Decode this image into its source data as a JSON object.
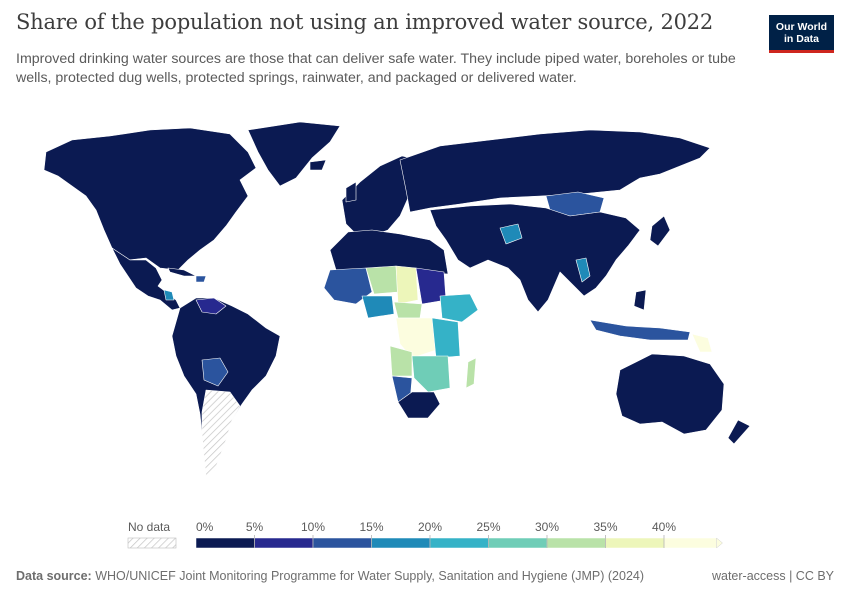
{
  "header": {
    "title": "Share of the population not using an improved water source, 2022",
    "subtitle": "Improved drinking water sources are those that can deliver safe water. They include piped water, boreholes or tube wells, protected dug wells, protected springs, rainwater, and packaged or delivered water.",
    "logo_line1": "Our World",
    "logo_line2": "in Data",
    "logo_colors": {
      "background": "#002147",
      "accent": "#ce261e"
    }
  },
  "legend": {
    "no_data_label": "No data",
    "tick_labels": [
      "0%",
      "5%",
      "10%",
      "15%",
      "20%",
      "25%",
      "30%",
      "35%",
      "40%"
    ],
    "colors": [
      "#0b1a52",
      "#27298f",
      "#2b549e",
      "#1f8ab8",
      "#35b2c7",
      "#6fcdb7",
      "#b9e2a8",
      "#edf6ba",
      "#fcfddf"
    ]
  },
  "map": {
    "shown_regions": [
      {
        "region": "Greenland",
        "color": "#0b1a52"
      },
      {
        "region": "North America",
        "color": "#0b1a52"
      },
      {
        "region": "Cuba",
        "color": "#0b1a52"
      },
      {
        "region": "Haiti",
        "color": "#2b549e"
      },
      {
        "region": "Nicaragua",
        "color": "#1f8ab8"
      },
      {
        "region": "Venezuela",
        "color": "#27298f"
      },
      {
        "region": "Colombia",
        "color": "#0b1a52"
      },
      {
        "region": "Peru",
        "color": "#0b1a52"
      },
      {
        "region": "Brazil",
        "color": "#0b1a52"
      },
      {
        "region": "Bolivia",
        "color": "#2b549e"
      },
      {
        "region": "Chile",
        "color": "#0b1a52"
      },
      {
        "region": "Argentina",
        "color": "no-data"
      },
      {
        "region": "Europe",
        "color": "#0b1a52"
      },
      {
        "region": "Russia",
        "color": "#0b1a52"
      },
      {
        "region": "Mongolia",
        "color": "#2b549e"
      },
      {
        "region": "China",
        "color": "#0b1a52"
      },
      {
        "region": "Afghanistan",
        "color": "#1f8ab8"
      },
      {
        "region": "India",
        "color": "#0b1a52"
      },
      {
        "region": "Myanmar",
        "color": "#1f8ab8"
      },
      {
        "region": "Indonesia",
        "color": "#2b549e"
      },
      {
        "region": "Papua New Guinea",
        "color": "#fcfddf"
      },
      {
        "region": "Australia",
        "color": "#0b1a52"
      },
      {
        "region": "North Africa",
        "color": "#0b1a52"
      },
      {
        "region": "Mali",
        "color": "#2b549e"
      },
      {
        "region": "Niger",
        "color": "#b9e2a8"
      },
      {
        "region": "Chad",
        "color": "#edf6ba"
      },
      {
        "region": "Sudan",
        "color": "#27298f"
      },
      {
        "region": "Ethiopia",
        "color": "#35b2c7"
      },
      {
        "region": "Nigeria",
        "color": "#1f8ab8"
      },
      {
        "region": "Central African Republic",
        "color": "#b9e2a8"
      },
      {
        "region": "DR Congo",
        "color": "#fcfddf"
      },
      {
        "region": "Kenya",
        "color": "#35b2c7"
      },
      {
        "region": "Tanzania",
        "color": "#35b2c7"
      },
      {
        "region": "Angola",
        "color": "#b9e2a8"
      },
      {
        "region": "Zambia",
        "color": "#6fcdb7"
      },
      {
        "region": "Mozambique",
        "color": "#6fcdb7"
      },
      {
        "region": "Madagascar",
        "color": "#b9e2a8"
      },
      {
        "region": "Namibia",
        "color": "#2b549e"
      },
      {
        "region": "South Africa",
        "color": "#0b1a52"
      }
    ]
  },
  "footer": {
    "source_label": "Data source:",
    "source_text": "WHO/UNICEF Joint Monitoring Programme for Water Supply, Sanitation and Hygiene (JMP) (2024)",
    "right_text": "water-access | CC BY"
  }
}
